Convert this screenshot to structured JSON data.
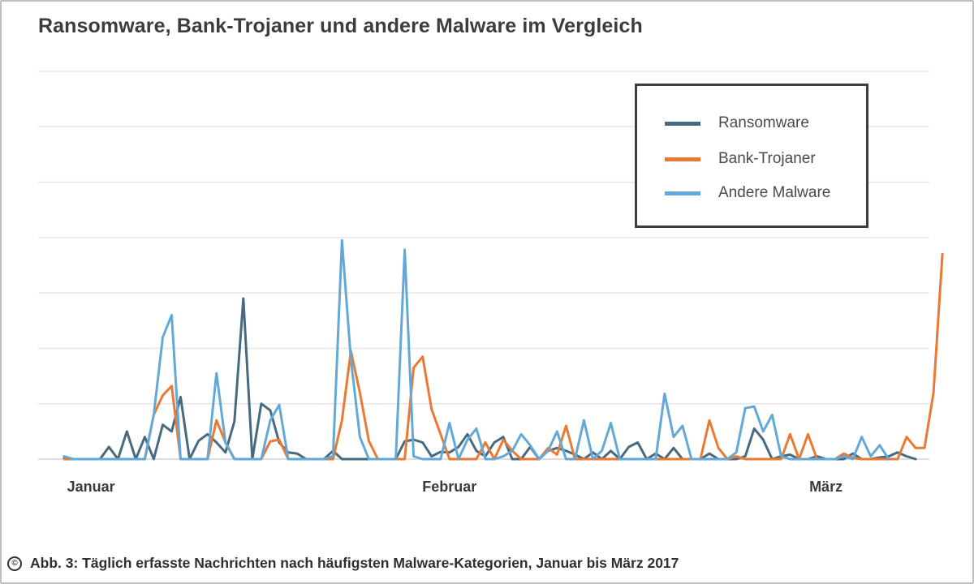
{
  "title": "Ransomware, Bank-Trojaner und andere Malware im Vergleich",
  "caption": "Abb. 3: Täglich erfasste Nachrichten nach häufigsten Malware-Kategorien, Januar bis März 2017",
  "copyright_icon": "copyright-icon",
  "chart_data": {
    "type": "line",
    "title": "Ransomware, Bank-Trojaner und andere Malware im Vergleich",
    "xlabel": "",
    "ylabel": "",
    "grid": true,
    "legend_position": "top-right",
    "y_axis_labels_shown": false,
    "ylim": [
      0,
      7
    ],
    "gridline_count": 7,
    "x_ticks": [
      {
        "label": "Januar",
        "index": 3
      },
      {
        "label": "Februar",
        "index": 43
      },
      {
        "label": "März",
        "index": 85
      }
    ],
    "series": [
      {
        "name": "Ransomware",
        "color": "#476a80",
        "values": [
          0.02,
          0,
          0,
          0,
          0,
          0.22,
          0,
          0.5,
          0,
          0.4,
          0,
          0.62,
          0.5,
          1.12,
          0,
          0.33,
          0.45,
          0.3,
          0.12,
          0.68,
          2.9,
          0,
          1.0,
          0.88,
          0.3,
          0.12,
          0.1,
          0,
          0,
          0,
          0.15,
          0,
          0,
          0,
          0,
          0,
          0,
          0,
          0.32,
          0.35,
          0.3,
          0.05,
          0.13,
          0.12,
          0.22,
          0.45,
          0.15,
          0.05,
          0.3,
          0.4,
          0,
          0,
          0.22,
          0,
          0.15,
          0.2,
          0.15,
          0.08,
          0,
          0.12,
          0,
          0.15,
          0,
          0.22,
          0.3,
          0,
          0.1,
          0,
          0.2,
          0,
          0,
          0,
          0.1,
          0,
          0,
          0,
          0.05,
          0.55,
          0.35,
          0,
          0.05,
          0.08,
          0,
          0,
          0.05,
          0,
          0,
          0,
          0.1,
          0,
          0,
          0.03,
          0.05,
          0.12,
          0.05,
          0
        ]
      },
      {
        "name": "Bank-Trojaner",
        "color": "#ea7a33",
        "values": [
          0,
          0,
          0,
          0,
          0,
          0,
          0,
          0,
          0,
          0,
          0.8,
          1.15,
          1.32,
          0,
          0,
          0,
          0,
          0.7,
          0.3,
          0,
          0,
          0,
          0,
          0.32,
          0.35,
          0,
          0,
          0,
          0,
          0,
          0,
          0.7,
          1.95,
          1.2,
          0.33,
          0,
          0,
          0,
          0,
          1.65,
          1.85,
          0.9,
          0.45,
          0,
          0,
          0,
          0,
          0.3,
          0,
          0.35,
          0.15,
          0,
          0,
          0,
          0.2,
          0.08,
          0.6,
          0,
          0,
          0,
          0,
          0,
          0,
          0,
          0,
          0,
          0,
          0,
          0,
          0,
          0,
          0,
          0.7,
          0.2,
          0,
          0.05,
          0,
          0,
          0,
          0,
          0,
          0.45,
          0,
          0.45,
          0,
          0,
          0,
          0.1,
          0.02,
          0,
          0,
          0,
          0,
          0,
          0.4,
          0.2,
          0.2,
          1.2,
          3.7
        ]
      },
      {
        "name": "Andere Malware",
        "color": "#63a9d8",
        "values": [
          0.05,
          0,
          0,
          0,
          0,
          0,
          0,
          0,
          0,
          0,
          0.8,
          2.2,
          2.6,
          0,
          0,
          0,
          0,
          1.55,
          0.3,
          0,
          0,
          0,
          0,
          0.7,
          0.98,
          0,
          0,
          0,
          0,
          0,
          0.05,
          3.95,
          1.8,
          0.4,
          0,
          0,
          0,
          0,
          3.78,
          0.05,
          0,
          0,
          0,
          0.65,
          0,
          0.35,
          0.55,
          0,
          0,
          0.05,
          0.15,
          0.45,
          0.25,
          0,
          0.15,
          0.5,
          0,
          0,
          0.7,
          0,
          0.15,
          0.65,
          0,
          0,
          0,
          0,
          0,
          1.18,
          0.4,
          0.6,
          0,
          0,
          0,
          0,
          0,
          0.12,
          0.92,
          0.95,
          0.5,
          0.8,
          0.05,
          0,
          0,
          0,
          0,
          0,
          0,
          0.05,
          0,
          0.4,
          0.05,
          0.25,
          0
        ]
      }
    ]
  }
}
